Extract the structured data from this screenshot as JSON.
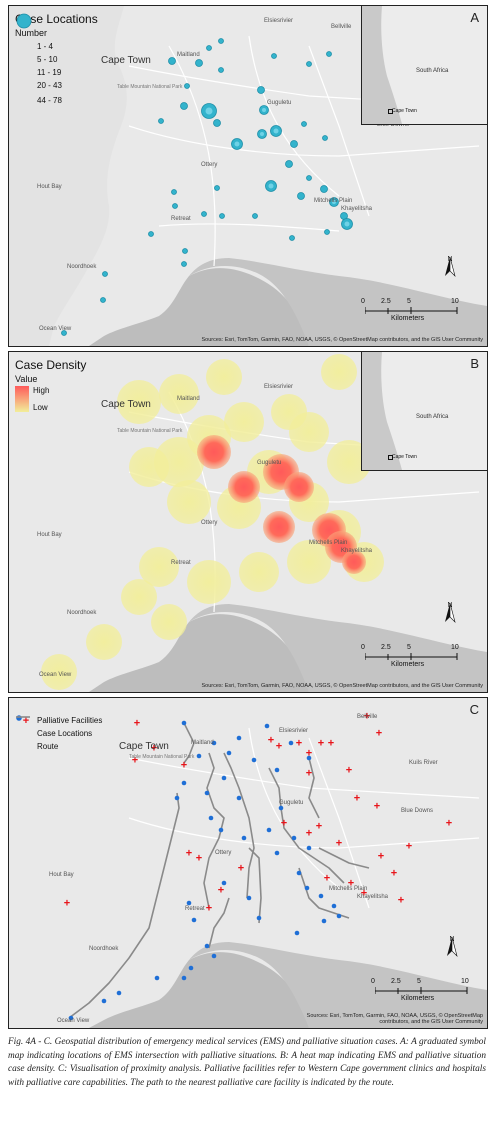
{
  "panelA": {
    "letter": "A",
    "legend_title": "Case Locations",
    "legend_subtitle": "Number",
    "legend_classes": [
      "1 - 4",
      "5 - 10",
      "11 - 19",
      "20 - 43",
      "44 - 78"
    ],
    "symbol_color": "#33b3cc"
  },
  "panelB": {
    "letter": "B",
    "legend_title": "Case Density",
    "legend_subtitle": "Value",
    "legend_high": "High",
    "legend_low": "Low",
    "high_color": "#ff5a5a",
    "low_color": "#f2ee9a"
  },
  "panelC": {
    "letter": "C",
    "legend_facilities": "Palliative Facilities",
    "legend_cases": "Case Locations",
    "legend_route": "Route",
    "facility_color": "#e8141a",
    "case_color": "#1f6fd6",
    "route_color": "#8a8a8a"
  },
  "map_labels": {
    "cape_town": "Cape Town",
    "maitland": "Maitland",
    "elsiesrivier": "Elsiesrivier",
    "bellville": "Bellville",
    "table_mountain": "Table Mountain National Park",
    "gugulethu": "Guguletu",
    "ottery": "Ottery",
    "hout_bay": "Hout Bay",
    "retreat": "Retreat",
    "noordhoek": "Noordhoek",
    "ocean_view": "Ocean View",
    "mitchells_plain": "Mitchells Plain",
    "khayelitsha": "Khayelitsha",
    "blue_downs": "Blue Downs",
    "kuils_river": "Kuils River"
  },
  "inset": {
    "country": "South Africa",
    "city": "Cape Town"
  },
  "scale": {
    "ticks": [
      "0",
      "2.5",
      "5",
      "10"
    ],
    "unit": "Kilometers"
  },
  "north_label": "N",
  "attribution_ab": "Sources: Esri, TomTom, Garmin, FAO, NOAA, USGS, © OpenStreetMap contributors, and the GIS User Community",
  "attribution_c_line1": "Sources: Esri, TomTom, Garmin, FAO, NOAA, USGS, © OpenStreetMap",
  "attribution_c_line2": "contributors, and the GIS User Community",
  "caption": "Fig. 4A - C. Geospatial distribution of emergency medical services (EMS) and palliative situation cases. A: A graduated symbol map indicating locations of EMS intersection with palliative situations. B: A heat map indicating EMS and palliative situation case density. C: Visualisation of proximity analysis. Palliative facilities refer to Western Cape government clinics and hospitals with palliative care capabilities. The path to the nearest palliative care facility is indicated by the route."
}
